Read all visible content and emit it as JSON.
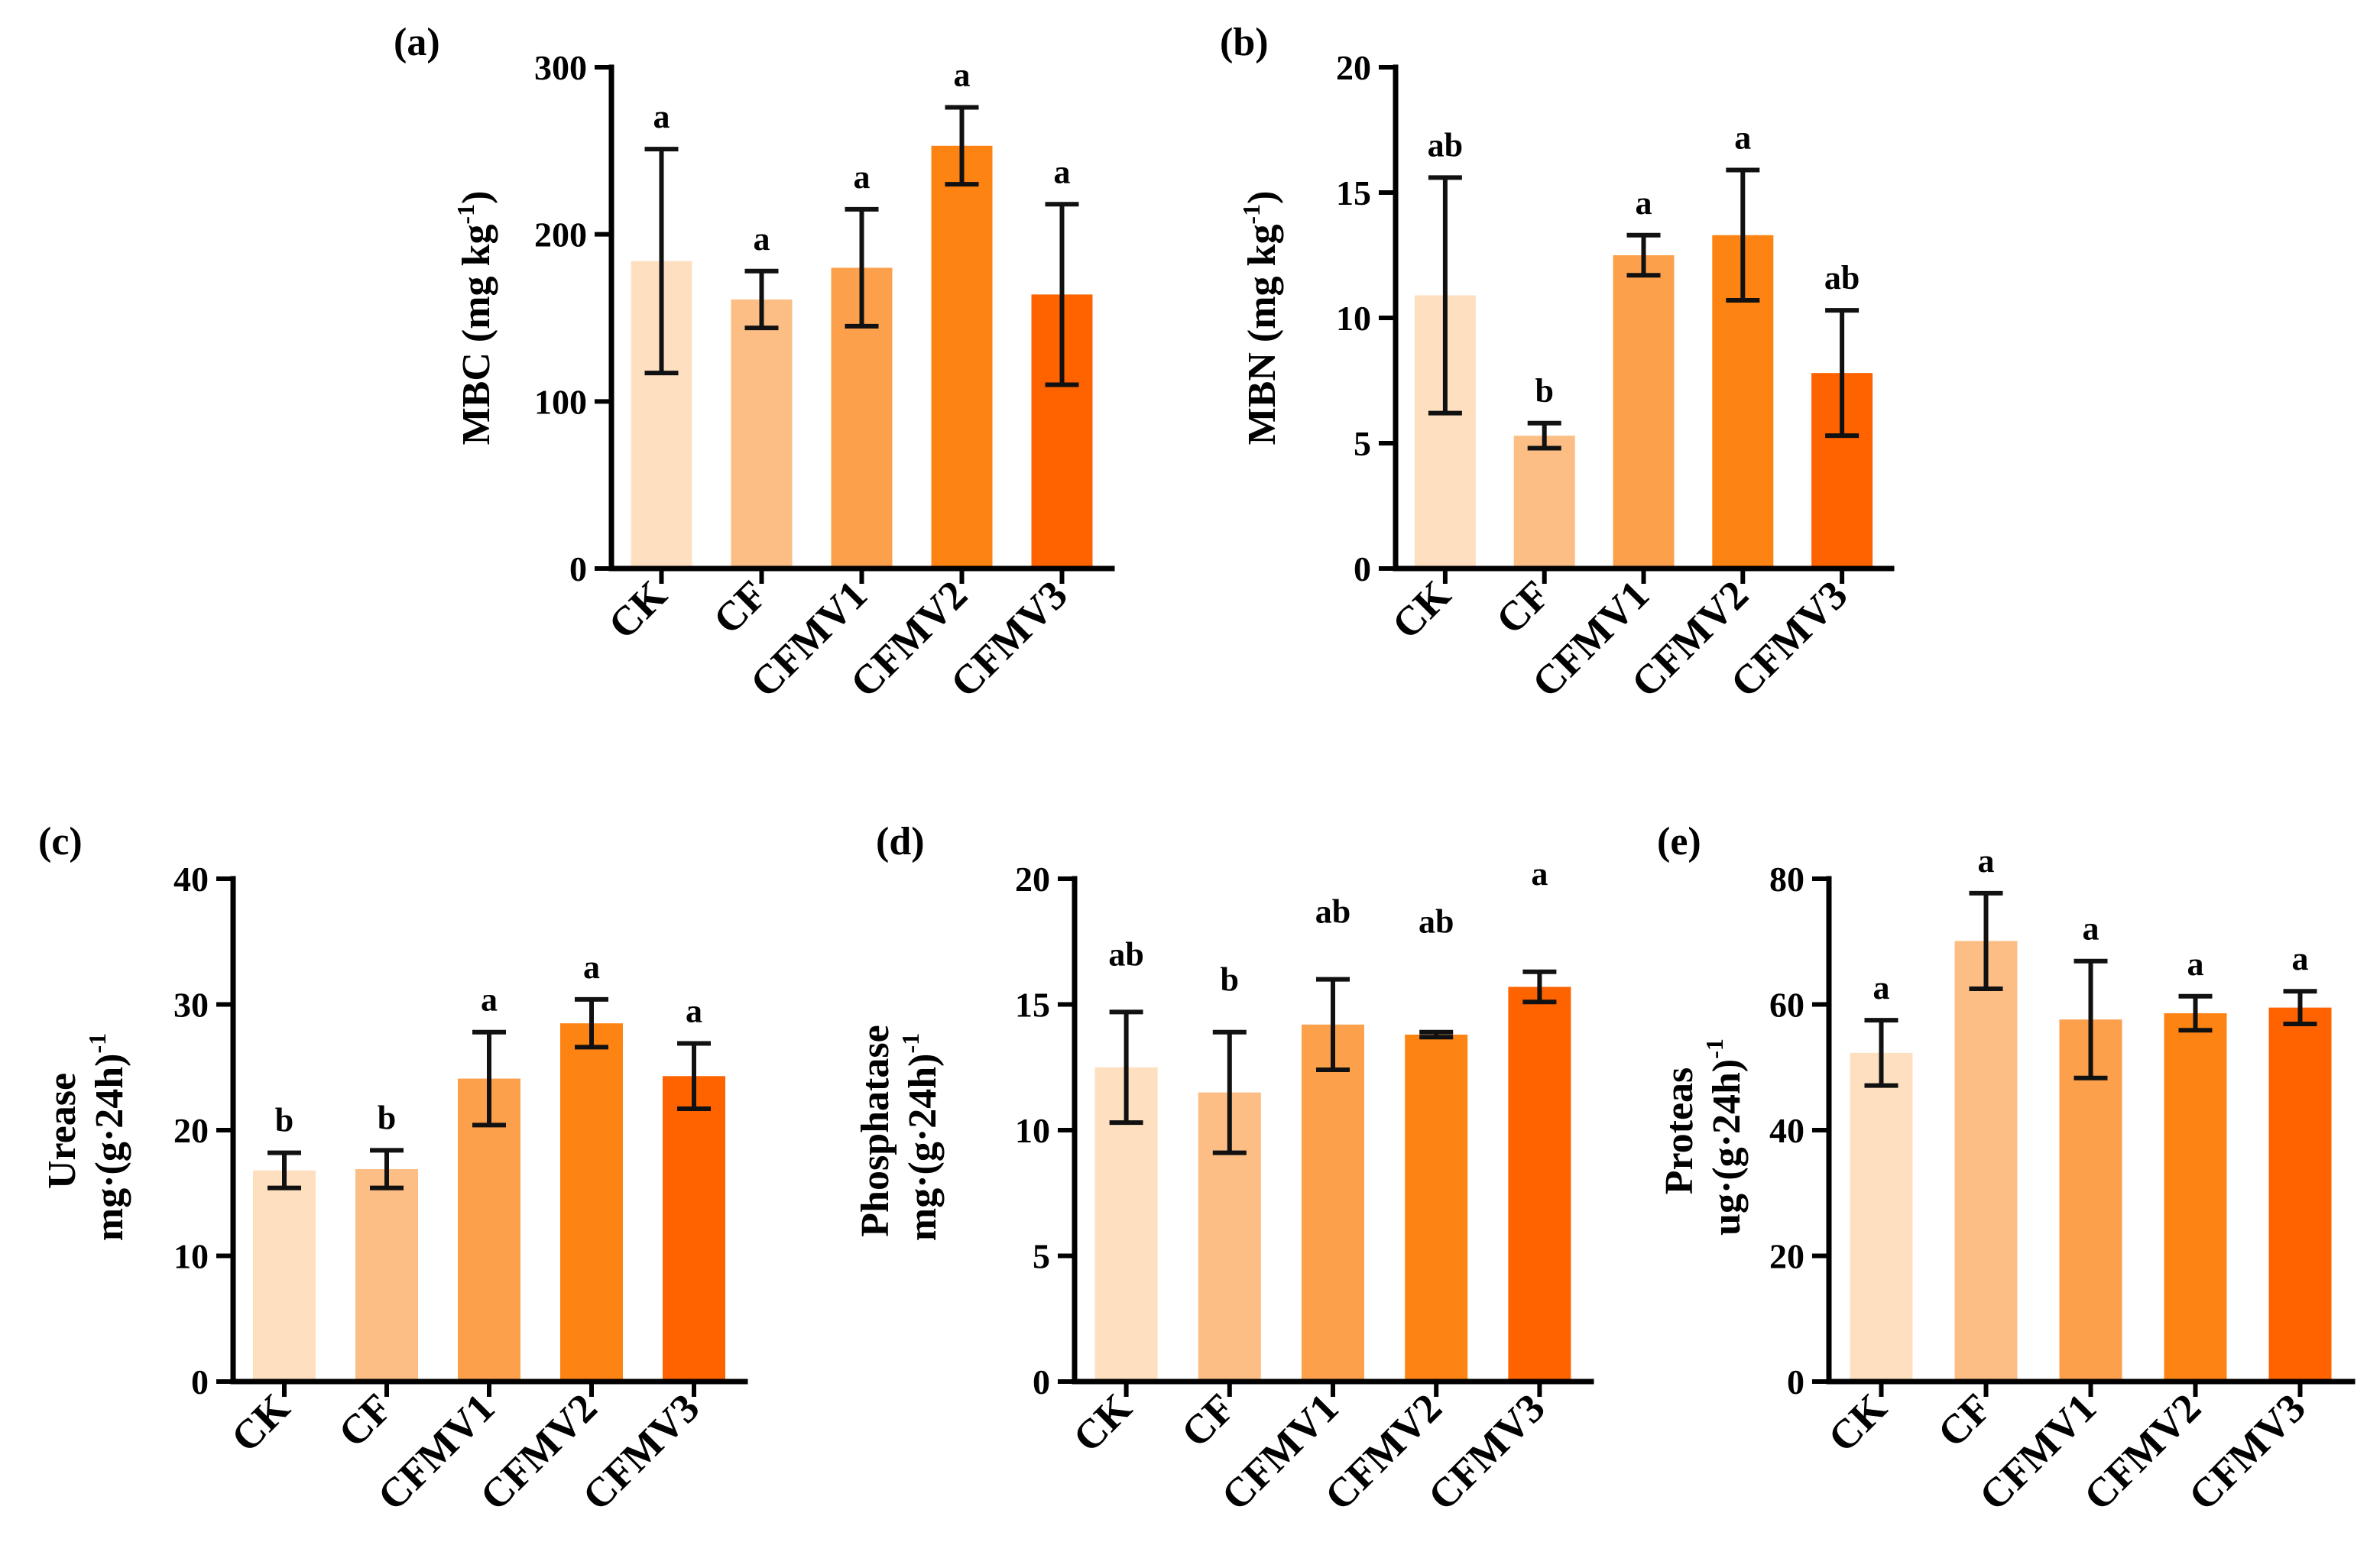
{
  "colors": [
    "#FEE0C1",
    "#FDBE85",
    "#FDA04C",
    "#FD8412",
    "#FE6300"
  ],
  "categories": [
    "CK",
    "CF",
    "CFMV1",
    "CFMV2",
    "CFMV3"
  ],
  "chart_data": [
    {
      "type": "bar",
      "panel": "(a)",
      "ylabel": [
        "MBC (mg kg",
        "-1",
        ")"
      ],
      "ylim": [
        0,
        300
      ],
      "yticks": [
        0,
        100,
        200,
        300
      ],
      "categories": [
        "CK",
        "CF",
        "CFMV1",
        "CFMV2",
        "CFMV3"
      ],
      "values": [
        184,
        161,
        180,
        253,
        164
      ],
      "errors": [
        67,
        17,
        35,
        23,
        54
      ],
      "sig": [
        "a",
        "a",
        "a",
        "a",
        "a"
      ]
    },
    {
      "type": "bar",
      "panel": "(b)",
      "ylabel": [
        "MBN (mg kg",
        "-1",
        ")"
      ],
      "ylim": [
        0,
        20
      ],
      "yticks": [
        0,
        5,
        10,
        15,
        20
      ],
      "categories": [
        "CK",
        "CF",
        "CFMV1",
        "CFMV2",
        "CFMV3"
      ],
      "values": [
        10.9,
        5.3,
        12.5,
        13.3,
        7.8
      ],
      "errors": [
        4.7,
        0.5,
        0.8,
        2.6,
        2.5
      ],
      "sig": [
        "ab",
        "b",
        "a",
        "a",
        "ab"
      ]
    },
    {
      "type": "bar",
      "panel": "(c)",
      "ylabel": [
        "Urease",
        "mg·(g·24h)",
        "-1"
      ],
      "ylim": [
        0,
        40
      ],
      "yticks": [
        0,
        10,
        20,
        30,
        40
      ],
      "categories": [
        "CK",
        "CF",
        "CFMV1",
        "CFMV2",
        "CFMV3"
      ],
      "values": [
        16.8,
        16.9,
        24.1,
        28.5,
        24.3
      ],
      "errors": [
        1.4,
        1.5,
        3.7,
        1.9,
        2.6
      ],
      "sig": [
        "b",
        "b",
        "a",
        "a",
        "a"
      ]
    },
    {
      "type": "bar",
      "panel": "(d)",
      "ylabel": [
        "Phosphatase",
        "mg·(g·24h)",
        "-1"
      ],
      "ylim": [
        0,
        20
      ],
      "yticks": [
        0,
        5,
        10,
        15,
        20
      ],
      "categories": [
        "CK",
        "CF",
        "CFMV1",
        "CFMV2",
        "CFMV3"
      ],
      "values": [
        12.5,
        11.5,
        14.2,
        13.8,
        15.7
      ],
      "errors": [
        2.2,
        2.4,
        1.8,
        0.1,
        0.6
      ],
      "sig": [
        "ab",
        "b",
        "ab",
        "ab",
        "a"
      ]
    },
    {
      "type": "bar",
      "panel": "(e)",
      "ylabel": [
        "Proteas",
        "ug·(g·24h)",
        "-1"
      ],
      "ylim": [
        0,
        80
      ],
      "yticks": [
        0,
        20,
        40,
        60,
        80
      ],
      "categories": [
        "CK",
        "CF",
        "CFMV1",
        "CFMV2",
        "CFMV3"
      ],
      "values": [
        52.3,
        70.1,
        57.6,
        58.6,
        59.5
      ],
      "errors": [
        5.2,
        7.6,
        9.3,
        2.7,
        2.6
      ],
      "sig": [
        "a",
        "a",
        "a",
        "a",
        "a"
      ]
    }
  ]
}
